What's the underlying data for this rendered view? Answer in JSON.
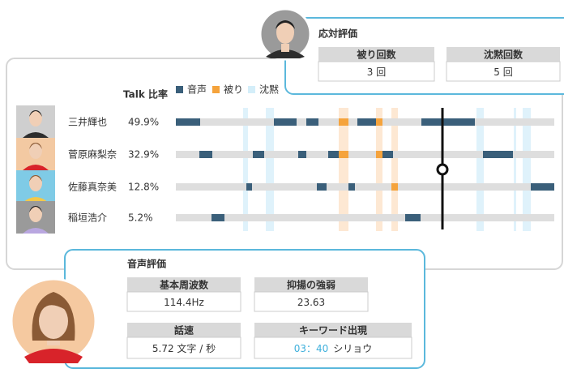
{
  "talk_header": "Talk 比率",
  "legend": [
    "音声",
    "被り",
    "沈黙"
  ],
  "speakers": [
    {
      "name": "三井輝也",
      "ratio": "49.9%"
    },
    {
      "name": "菅原麻梨奈",
      "ratio": "32.9%"
    },
    {
      "name": "佐藤真奈美",
      "ratio": "12.8%"
    },
    {
      "name": "稲垣浩介",
      "ratio": "5.2%"
    }
  ],
  "response_eval": {
    "title": "応対評価",
    "metrics": [
      {
        "label": "被り回数",
        "value": "3 回"
      },
      {
        "label": "沈黙回数",
        "value": "5 回"
      }
    ]
  },
  "voice_eval": {
    "title": "音声評価",
    "metrics": [
      {
        "label": "基本周波数",
        "value": "114.4Hz"
      },
      {
        "label": "抑揚の強弱",
        "value": "23.63"
      },
      {
        "label": "話速",
        "value": "5.72 文字 / 秒"
      },
      {
        "label": "キーワード出現",
        "time": "03：40",
        "keyword": "シリョウ"
      }
    ]
  }
}
